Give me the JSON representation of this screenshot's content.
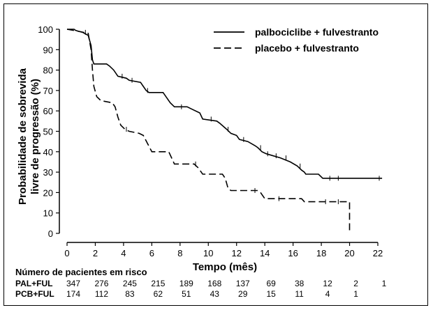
{
  "chart_data": {
    "type": "line",
    "title": "",
    "xlabel": "Tempo (mês)",
    "ylabel": [
      "Probabilidade de sobrevida",
      "livre de progressão (%)"
    ],
    "xlim": [
      0,
      22
    ],
    "ylim": [
      0,
      100
    ],
    "x_ticks": [
      0,
      2,
      4,
      6,
      8,
      10,
      12,
      14,
      16,
      18,
      20,
      22
    ],
    "y_ticks": [
      0,
      10,
      20,
      30,
      40,
      50,
      60,
      70,
      80,
      90,
      100
    ],
    "grid": false,
    "legend_position": "top-right",
    "series": [
      {
        "name": "palbociclibe + fulvestranto",
        "style": "solid",
        "points": [
          [
            0,
            100
          ],
          [
            0.5,
            100
          ],
          [
            0.6,
            99.5
          ],
          [
            0.8,
            99
          ],
          [
            1.1,
            98.5
          ],
          [
            1.5,
            97
          ],
          [
            1.7,
            92
          ],
          [
            1.8,
            85
          ],
          [
            1.9,
            83
          ],
          [
            2.8,
            83
          ],
          [
            3.0,
            82
          ],
          [
            3.3,
            80
          ],
          [
            3.6,
            77
          ],
          [
            4.2,
            76
          ],
          [
            4.4,
            75
          ],
          [
            5.2,
            74
          ],
          [
            5.4,
            72
          ],
          [
            5.6,
            70
          ],
          [
            5.8,
            69
          ],
          [
            6.8,
            69
          ],
          [
            7.0,
            67
          ],
          [
            7.3,
            64
          ],
          [
            7.6,
            62
          ],
          [
            8.5,
            62
          ],
          [
            8.8,
            61
          ],
          [
            9.4,
            59
          ],
          [
            9.6,
            56
          ],
          [
            10.6,
            55
          ],
          [
            10.8,
            54
          ],
          [
            11.3,
            51
          ],
          [
            11.6,
            49
          ],
          [
            12.0,
            48
          ],
          [
            12.2,
            46
          ],
          [
            12.8,
            45
          ],
          [
            13.3,
            43
          ],
          [
            13.5,
            42
          ],
          [
            13.8,
            40
          ],
          [
            14.1,
            39
          ],
          [
            14.6,
            38
          ],
          [
            15.1,
            37
          ],
          [
            15.8,
            35
          ],
          [
            16.3,
            33
          ],
          [
            16.6,
            31
          ],
          [
            16.8,
            30
          ],
          [
            16.9,
            29
          ],
          [
            17.0,
            29
          ],
          [
            17.8,
            29
          ],
          [
            18.1,
            27
          ],
          [
            22.3,
            27
          ]
        ],
        "censor_x": [
          1.3,
          3.9,
          4.6,
          5.7,
          8.1,
          10.2,
          11.4,
          12.5,
          13.7,
          14.2,
          14.8,
          15.5,
          16.5,
          18.6,
          19.2,
          22.1
        ]
      },
      {
        "name": "placebo + fulvestranto",
        "style": "dashed",
        "points": [
          [
            0,
            100
          ],
          [
            0.8,
            99
          ],
          [
            1.5,
            98
          ],
          [
            1.7,
            90
          ],
          [
            1.8,
            80
          ],
          [
            1.9,
            72
          ],
          [
            2.1,
            67
          ],
          [
            2.4,
            65
          ],
          [
            3.2,
            64
          ],
          [
            3.4,
            62
          ],
          [
            3.6,
            57
          ],
          [
            3.8,
            53
          ],
          [
            4.1,
            51
          ],
          [
            4.4,
            50
          ],
          [
            5.1,
            49
          ],
          [
            5.4,
            48
          ],
          [
            5.7,
            44
          ],
          [
            6.0,
            40
          ],
          [
            7.2,
            40
          ],
          [
            7.4,
            37
          ],
          [
            7.6,
            34
          ],
          [
            9.0,
            34
          ],
          [
            9.3,
            32
          ],
          [
            9.6,
            29
          ],
          [
            11.0,
            29
          ],
          [
            11.2,
            27
          ],
          [
            11.4,
            22
          ],
          [
            11.6,
            21
          ],
          [
            13.5,
            21
          ],
          [
            13.7,
            20
          ],
          [
            14.0,
            17
          ],
          [
            16.6,
            17
          ],
          [
            16.8,
            15.5
          ],
          [
            20.0,
            15.5
          ],
          [
            20.0,
            0
          ]
        ],
        "censor_x": [
          4.2,
          9.1,
          13.3,
          15.0,
          18.3,
          19.2
        ]
      }
    ]
  },
  "risk_table": {
    "title": "Número de pacientes em risco",
    "rows": [
      {
        "label": "PAL+FUL",
        "values": [
          "347",
          "276",
          "245",
          "215",
          "189",
          "168",
          "137",
          "69",
          "38",
          "12",
          "2",
          "1"
        ]
      },
      {
        "label": "PCB+FUL",
        "values": [
          "174",
          "112",
          "83",
          "62",
          "51",
          "43",
          "29",
          "15",
          "11",
          "4",
          "1",
          ""
        ]
      }
    ]
  }
}
